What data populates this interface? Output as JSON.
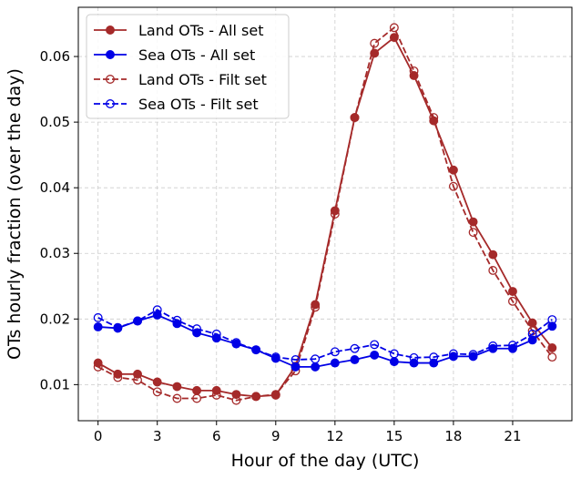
{
  "chart_data": {
    "type": "line",
    "xlabel": "Hour of the day (UTC)",
    "ylabel": "OTs hourly fraction (over the day)",
    "xlim": [
      -1,
      24
    ],
    "ylim": [
      0.0045,
      0.0675
    ],
    "xticks": [
      0,
      3,
      6,
      9,
      12,
      15,
      18,
      21
    ],
    "yticks": [
      0.01,
      0.02,
      0.03,
      0.04,
      0.05,
      0.06
    ],
    "ytick_labels": [
      "0.01",
      "0.02",
      "0.03",
      "0.04",
      "0.05",
      "0.06"
    ],
    "grid": true,
    "legend_position": "top-left",
    "x": [
      0,
      1,
      2,
      3,
      4,
      5,
      6,
      7,
      8,
      9,
      10,
      11,
      12,
      13,
      14,
      15,
      16,
      17,
      18,
      19,
      20,
      21,
      22,
      23
    ],
    "series": [
      {
        "name": "Land OTs - All set",
        "color": "#a52a2a",
        "linestyle": "solid",
        "marker": "filled",
        "values": [
          0.0133,
          0.0116,
          0.0116,
          0.0104,
          0.0097,
          0.0091,
          0.0091,
          0.0085,
          0.0082,
          0.0084,
          0.0128,
          0.0222,
          0.0365,
          0.0507,
          0.0605,
          0.0629,
          0.0571,
          0.0502,
          0.0427,
          0.0348,
          0.0298,
          0.0242,
          0.0194,
          0.0156
        ]
      },
      {
        "name": "Sea OTs - All set",
        "color": "#0000e6",
        "linestyle": "solid",
        "marker": "filled",
        "values": [
          0.0188,
          0.0186,
          0.0197,
          0.0206,
          0.0193,
          0.0179,
          0.0171,
          0.0162,
          0.0153,
          0.014,
          0.0127,
          0.0127,
          0.0133,
          0.0138,
          0.0145,
          0.0135,
          0.0133,
          0.0133,
          0.0143,
          0.0143,
          0.0155,
          0.0155,
          0.0168,
          0.0189
        ]
      },
      {
        "name": "Land OTs - Filt set",
        "color": "#a52a2a",
        "linestyle": "dashed",
        "marker": "hollow",
        "values": [
          0.0127,
          0.0111,
          0.0107,
          0.0089,
          0.0079,
          0.0079,
          0.0084,
          0.0076,
          0.0082,
          0.0085,
          0.0121,
          0.0218,
          0.036,
          0.0507,
          0.062,
          0.0644,
          0.0578,
          0.0507,
          0.0402,
          0.0332,
          0.0274,
          0.0227,
          0.0182,
          0.0142
        ]
      },
      {
        "name": "Sea OTs - Filt set",
        "color": "#0000e6",
        "linestyle": "dashed",
        "marker": "hollow",
        "values": [
          0.0202,
          0.0187,
          0.0197,
          0.0214,
          0.0198,
          0.0185,
          0.0177,
          0.0164,
          0.0153,
          0.0142,
          0.0138,
          0.0139,
          0.015,
          0.0155,
          0.0161,
          0.0147,
          0.0141,
          0.0142,
          0.0147,
          0.0146,
          0.0159,
          0.016,
          0.0177,
          0.0199
        ]
      }
    ]
  }
}
